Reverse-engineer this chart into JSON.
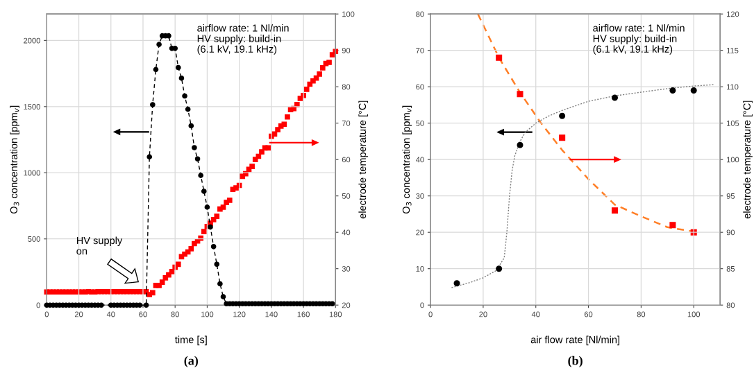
{
  "chart_data": [
    {
      "type": "line",
      "xlabel": "time [s]",
      "ylabel": "O$_{3}$ concentration [ppm$_{v}$]",
      "y2label": "electrode temperature [°C]",
      "xlim": [
        0,
        180
      ],
      "xticks": [
        0,
        20,
        40,
        60,
        80,
        100,
        120,
        140,
        160,
        180
      ],
      "ylim": [
        0,
        2200
      ],
      "yticks": [
        0,
        500,
        1000,
        1500,
        2000
      ],
      "y2lim": [
        20,
        100
      ],
      "y2ticks": [
        20,
        30,
        40,
        50,
        60,
        70,
        80,
        90,
        100
      ],
      "grid": true,
      "legend": false,
      "series": [
        {
          "color": "#000000",
          "marker": "circle",
          "line_style": "dashed",
          "x": [
            0,
            2,
            4,
            6,
            8,
            10,
            12,
            14,
            16,
            18,
            20,
            22,
            24,
            26,
            28,
            30,
            32,
            34,
            40,
            42,
            44,
            46,
            48,
            50,
            52,
            54,
            56,
            58,
            62,
            64,
            66,
            68,
            70,
            72,
            74,
            76,
            78,
            80,
            82,
            84,
            86,
            88,
            90,
            92,
            94,
            96,
            98,
            100,
            102,
            104,
            106,
            108,
            110,
            112,
            114,
            116,
            118,
            120,
            122,
            124,
            126,
            128,
            130,
            132,
            134,
            136,
            138,
            140,
            142,
            144,
            146,
            148,
            150,
            152,
            154,
            156,
            158,
            160,
            162,
            164,
            166,
            168,
            170,
            172,
            174,
            176,
            178
          ],
          "values": [
            0,
            0,
            0,
            0,
            0,
            0,
            0,
            0,
            0,
            0,
            0,
            0,
            0,
            0,
            0,
            0,
            0,
            0,
            0,
            0,
            0,
            0,
            0,
            0,
            0,
            0,
            0,
            0,
            0,
            1120,
            1515,
            1780,
            1970,
            2035,
            2035,
            2035,
            1940,
            1940,
            1795,
            1715,
            1580,
            1480,
            1355,
            1190,
            1105,
            980,
            860,
            740,
            590,
            442,
            309,
            161,
            63,
            10,
            10,
            10,
            10,
            10,
            10,
            10,
            10,
            10,
            10,
            10,
            10,
            10,
            10,
            10,
            10,
            10,
            10,
            10,
            10,
            10,
            10,
            10,
            10,
            10,
            10,
            10,
            10,
            10,
            10,
            10,
            10,
            10,
            10
          ]
        },
        {
          "type": "scatter",
          "axis": "y2",
          "color": "#ff0000",
          "marker": "square",
          "x": [
            0,
            2,
            4,
            6,
            8,
            10,
            12,
            14,
            16,
            18,
            20,
            22,
            24,
            26,
            28,
            30,
            32,
            34,
            36,
            38,
            40,
            42,
            44,
            46,
            48,
            50,
            52,
            54,
            56,
            58,
            60,
            62,
            64,
            66,
            68,
            70,
            72,
            74,
            76,
            78,
            80,
            82,
            84,
            86,
            88,
            90,
            92,
            94,
            96,
            98,
            100,
            102,
            104,
            106,
            108,
            110,
            112,
            114,
            116,
            118,
            120,
            122,
            124,
            126,
            128,
            130,
            132,
            134,
            136,
            138,
            140,
            142,
            144,
            146,
            148,
            150,
            152,
            154,
            156,
            158,
            160,
            162,
            164,
            166,
            168,
            170,
            172,
            174,
            176,
            178,
            180
          ],
          "values": [
            23.6,
            23.6,
            23.6,
            23.6,
            23.6,
            23.6,
            23.6,
            23.6,
            23.6,
            23.6,
            23.6,
            23.6,
            23.6,
            23.7,
            23.6,
            23.6,
            23.7,
            23.7,
            23.7,
            23.7,
            23.7,
            23.7,
            23.7,
            23.7,
            23.7,
            23.7,
            23.7,
            23.7,
            23.7,
            23.7,
            23.7,
            23.7,
            22.9,
            23.4,
            25.4,
            25.4,
            26.3,
            27.5,
            28.3,
            29.2,
            30.4,
            31.2,
            33.3,
            34,
            34.6,
            35.5,
            36.9,
            37.6,
            38.4,
            40.2,
            41.6,
            42.5,
            43.5,
            44.4,
            46.4,
            46.9,
            48.2,
            48.8,
            51.8,
            52.2,
            52.9,
            55.4,
            56.1,
            57.3,
            58.1,
            60,
            60.9,
            62.1,
            63.2,
            63.2,
            66.4,
            67,
            68.2,
            69.2,
            69.7,
            71.7,
            73.7,
            74,
            75.1,
            76.8,
            77.6,
            79.3,
            80.7,
            81.6,
            82.4,
            83.5,
            85.2,
            86.4,
            86.7,
            88.8,
            89.7
          ]
        }
      ],
      "annotations": [
        "airflow rate: 1 Nl/min\nHV supply: build-in\n(6.1 kV, 19.1 kHz)",
        "HV supply\non",
        "(a)"
      ]
    },
    {
      "type": "scatter",
      "xlabel": "air flow rate [Nl/min]",
      "ylabel": "O$_{3}$ concentration [ppm$_{v}$]",
      "y2label": "electrode temperature [°C]",
      "xlim": [
        0,
        110
      ],
      "xticks": [
        0,
        20,
        40,
        60,
        80,
        100
      ],
      "ylim": [
        0,
        80
      ],
      "yticks": [
        0,
        10,
        20,
        30,
        40,
        50,
        60,
        70,
        80
      ],
      "y2lim": [
        80,
        120
      ],
      "y2ticks": [
        80,
        85,
        90,
        95,
        100,
        105,
        110,
        115,
        120
      ],
      "grid": true,
      "legend": false,
      "series": [
        {
          "type": "line",
          "color": "#7f7f7f",
          "marker": "none",
          "line_style": "dotted",
          "x": [
            8,
            15,
            20,
            25,
            28,
            29,
            30,
            31,
            32,
            34,
            36,
            40,
            45,
            50,
            60,
            70,
            80,
            90,
            100,
            108
          ],
          "values": [
            4.8,
            6.2,
            7.5,
            9.5,
            13,
            20,
            30,
            37,
            41,
            45,
            47.5,
            50,
            52,
            53.5,
            56,
            57.5,
            58.5,
            59.5,
            60.2,
            60.6
          ]
        },
        {
          "type": "line",
          "axis": "y2",
          "color": "#ff7f27",
          "marker": "none",
          "line_style": "dashed",
          "x": [
            18,
            26,
            34,
            42,
            50,
            60,
            70,
            80,
            90,
            100
          ],
          "values": [
            120,
            114,
            109.2,
            105,
            101.3,
            97.3,
            93.8,
            92.2,
            90.7,
            90.1
          ]
        },
        {
          "color": "#000000",
          "marker": "circle",
          "x": [
            10,
            26,
            34,
            50,
            70,
            92,
            100
          ],
          "values": [
            6,
            10,
            44,
            52,
            57,
            59,
            59
          ]
        },
        {
          "axis": "y2",
          "color": "#ff0000",
          "marker": "square",
          "x": [
            26,
            34,
            50,
            70,
            92,
            100
          ],
          "values": [
            114,
            109,
            103,
            93,
            91,
            90
          ]
        }
      ],
      "annotations": [
        "airflow rate: 1 Nl/min\nHV supply: build-in\n(6.1 kV, 19.1 kHz)",
        "(b)"
      ]
    }
  ]
}
